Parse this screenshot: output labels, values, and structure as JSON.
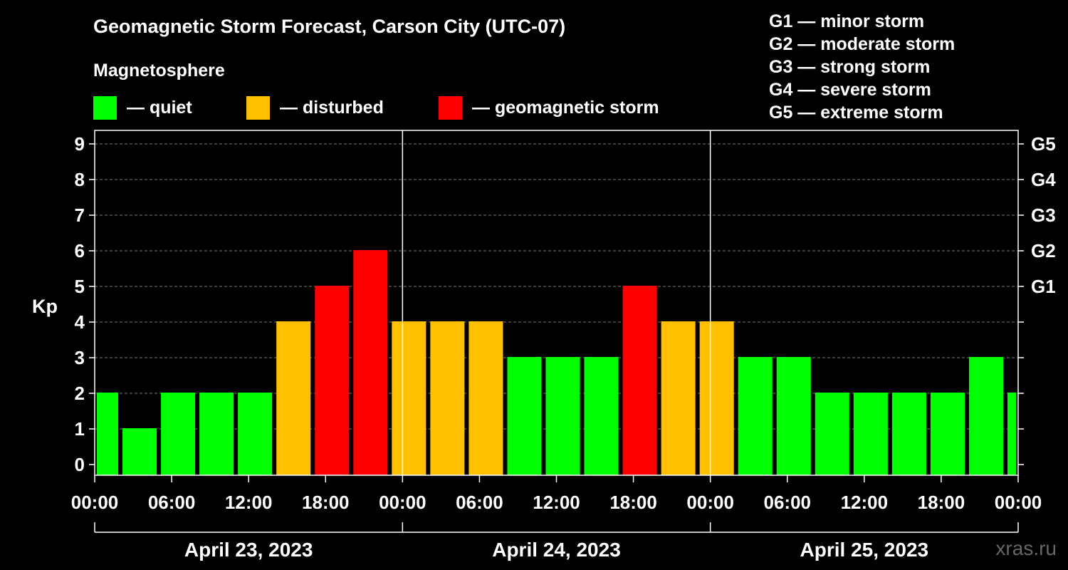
{
  "title": "Geomagnetic Storm Forecast, Carson City (UTC-07)",
  "legend": {
    "heading": "Magnetosphere",
    "items": [
      {
        "label": "— quiet",
        "color": "#00ff00"
      },
      {
        "label": "— disturbed",
        "color": "#ffc000"
      },
      {
        "label": "— geomagnetic storm",
        "color": "#ff0000"
      }
    ]
  },
  "storm_scale": [
    "G1 — minor storm",
    "G2 — moderate storm",
    "G3 — strong storm",
    "G4 — severe storm",
    "G5 — extreme storm"
  ],
  "watermark": "xras.ru",
  "chart_data": {
    "type": "bar",
    "ylabel": "Kp",
    "ylim": [
      0,
      9
    ],
    "yticks": [
      "0",
      "1",
      "2",
      "3",
      "4",
      "5",
      "6",
      "7",
      "8",
      "9"
    ],
    "right_axis_ticks": [
      {
        "kp": 5,
        "label": "G1"
      },
      {
        "kp": 6,
        "label": "G2"
      },
      {
        "kp": 7,
        "label": "G3"
      },
      {
        "kp": 8,
        "label": "G4"
      },
      {
        "kp": 9,
        "label": "G5"
      }
    ],
    "x_tick_labels": [
      "00:00",
      "06:00",
      "12:00",
      "18:00",
      "00:00",
      "06:00",
      "12:00",
      "18:00",
      "00:00",
      "06:00",
      "12:00",
      "18:00",
      "00:00"
    ],
    "days": [
      "April 23, 2023",
      "April 24, 2023",
      "April 25, 2023"
    ],
    "grid": "horizontal dashed",
    "bars": [
      {
        "start": "2023-04-23 00:00",
        "end": "2023-04-23 02:00",
        "kp": 2
      },
      {
        "start": "2023-04-23 02:00",
        "end": "2023-04-23 05:00",
        "kp": 1
      },
      {
        "start": "2023-04-23 05:00",
        "end": "2023-04-23 08:00",
        "kp": 2
      },
      {
        "start": "2023-04-23 08:00",
        "end": "2023-04-23 11:00",
        "kp": 2
      },
      {
        "start": "2023-04-23 11:00",
        "end": "2023-04-23 14:00",
        "kp": 2
      },
      {
        "start": "2023-04-23 14:00",
        "end": "2023-04-23 17:00",
        "kp": 4
      },
      {
        "start": "2023-04-23 17:00",
        "end": "2023-04-23 20:00",
        "kp": 5
      },
      {
        "start": "2023-04-23 20:00",
        "end": "2023-04-23 23:00",
        "kp": 6
      },
      {
        "start": "2023-04-23 23:00",
        "end": "2023-04-24 02:00",
        "kp": 4
      },
      {
        "start": "2023-04-24 02:00",
        "end": "2023-04-24 05:00",
        "kp": 4
      },
      {
        "start": "2023-04-24 05:00",
        "end": "2023-04-24 08:00",
        "kp": 4
      },
      {
        "start": "2023-04-24 08:00",
        "end": "2023-04-24 11:00",
        "kp": 3
      },
      {
        "start": "2023-04-24 11:00",
        "end": "2023-04-24 14:00",
        "kp": 3
      },
      {
        "start": "2023-04-24 14:00",
        "end": "2023-04-24 17:00",
        "kp": 3
      },
      {
        "start": "2023-04-24 17:00",
        "end": "2023-04-24 20:00",
        "kp": 5
      },
      {
        "start": "2023-04-24 20:00",
        "end": "2023-04-24 23:00",
        "kp": 4
      },
      {
        "start": "2023-04-24 23:00",
        "end": "2023-04-25 02:00",
        "kp": 4
      },
      {
        "start": "2023-04-25 02:00",
        "end": "2023-04-25 05:00",
        "kp": 3
      },
      {
        "start": "2023-04-25 05:00",
        "end": "2023-04-25 08:00",
        "kp": 3
      },
      {
        "start": "2023-04-25 08:00",
        "end": "2023-04-25 11:00",
        "kp": 2
      },
      {
        "start": "2023-04-25 11:00",
        "end": "2023-04-25 14:00",
        "kp": 2
      },
      {
        "start": "2023-04-25 14:00",
        "end": "2023-04-25 17:00",
        "kp": 2
      },
      {
        "start": "2023-04-25 17:00",
        "end": "2023-04-25 20:00",
        "kp": 2
      },
      {
        "start": "2023-04-25 20:00",
        "end": "2023-04-25 23:00",
        "kp": 3
      },
      {
        "start": "2023-04-25 23:00",
        "end": "2023-04-26 00:00",
        "kp": 2
      }
    ]
  }
}
